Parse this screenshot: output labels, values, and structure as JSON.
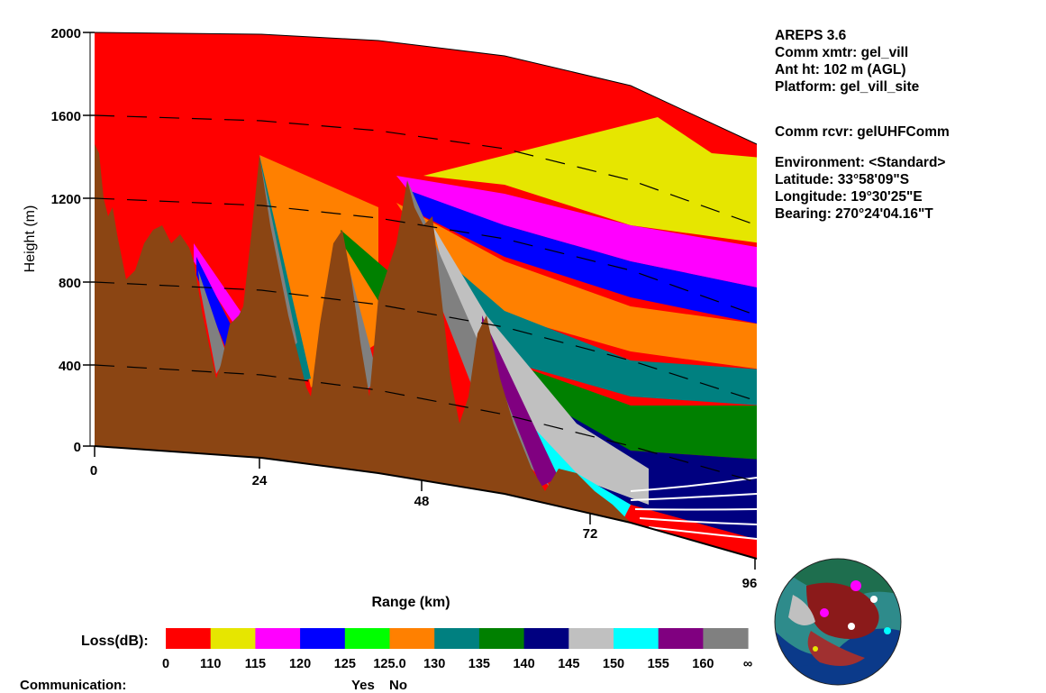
{
  "info": {
    "version": "AREPS 3.6",
    "comm_xmtr": "Comm xmtr: gel_vill",
    "ant_ht": "Ant ht: 102 m (AGL)",
    "platform": "Platform: gel_vill_site",
    "comm_rcvr": "Comm rcvr:   gelUHFComm",
    "environment": "Environment: <Standard>",
    "latitude": "Latitude:  33°58'09\"S",
    "longitude": "Longitude:  19°30'25\"E",
    "bearing": "Bearing: 270°24'04.16\"T"
  },
  "chart_data": {
    "type": "heatmap",
    "ylabel": "Height (m)",
    "xlabel": "Range (km)",
    "y_ticks": [
      "2000",
      "1600",
      "1200",
      "800",
      "400",
      "0"
    ],
    "x_ticks": [
      "0",
      "24",
      "48",
      "72",
      "96"
    ],
    "xlim": [
      0,
      96
    ],
    "ylim": [
      0,
      2000
    ],
    "legend": {
      "title": "Loss(dB):",
      "colors": [
        "#ff0000",
        "#e6e600",
        "#ff00ff",
        "#0000ff",
        "#00ff00",
        "#ff8000",
        "#008080",
        "#008000",
        "#000080",
        "#c0c0c0",
        "#00ffff",
        "#800080",
        "#808080"
      ],
      "labels": [
        "0",
        "110",
        "115",
        "120",
        "125",
        "125.0",
        "130",
        "135",
        "140",
        "145",
        "150",
        "155",
        "160",
        "∞"
      ]
    },
    "communication": {
      "label": "Communication:",
      "yes": "Yes",
      "no": "No"
    }
  },
  "colors": {
    "terrain": "#8b4513",
    "background": "#ffffff"
  }
}
